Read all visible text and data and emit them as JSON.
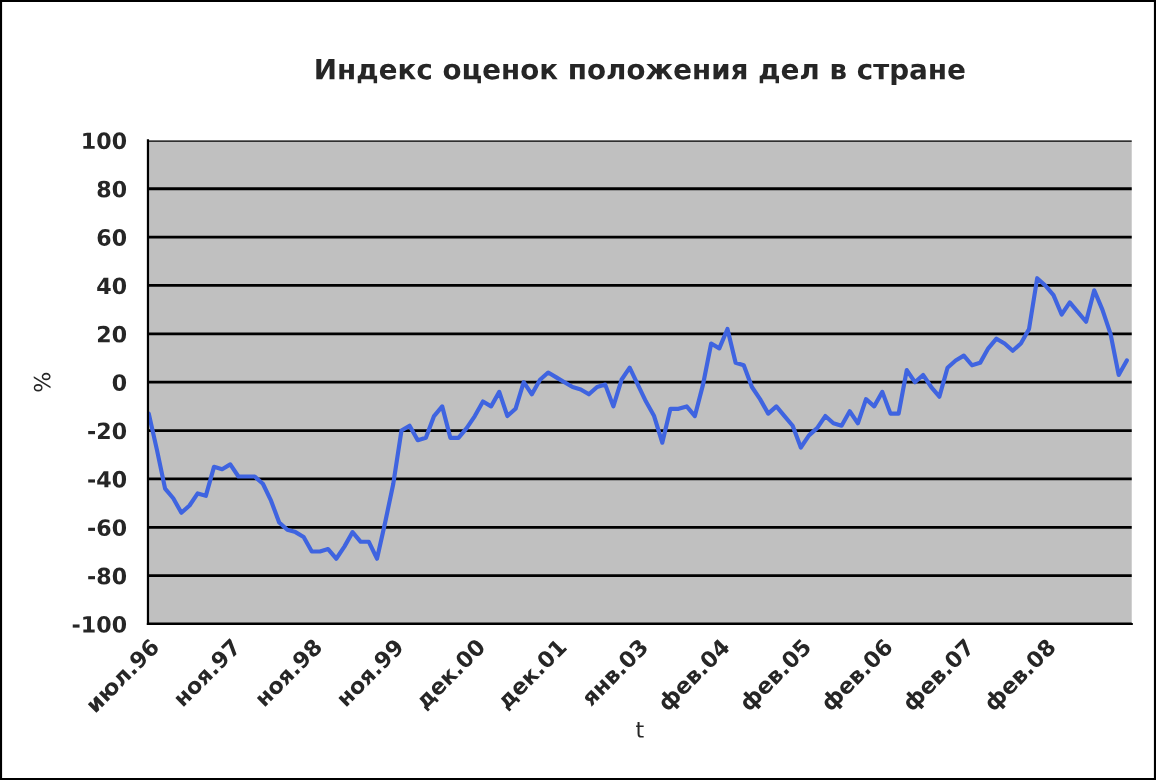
{
  "chart_data": {
    "type": "line",
    "title": "Индекс оценок положения дел в стране",
    "xlabel": "t",
    "ylabel": "%",
    "categories": [
      "июл.96",
      null,
      null,
      null,
      null,
      null,
      null,
      null,
      null,
      null,
      "ноя.97",
      null,
      null,
      null,
      null,
      null,
      null,
      null,
      null,
      null,
      "ноя.98",
      null,
      null,
      null,
      null,
      null,
      null,
      null,
      null,
      null,
      "ноя.99",
      null,
      null,
      null,
      null,
      null,
      null,
      null,
      null,
      null,
      "дек.00",
      null,
      null,
      null,
      null,
      null,
      null,
      null,
      null,
      null,
      "дек.01",
      null,
      null,
      null,
      null,
      null,
      null,
      null,
      null,
      null,
      "янв.03",
      null,
      null,
      null,
      null,
      null,
      null,
      null,
      null,
      null,
      "фев.04",
      null,
      null,
      null,
      null,
      null,
      null,
      null,
      null,
      null,
      "фев.05",
      null,
      null,
      null,
      null,
      null,
      null,
      null,
      null,
      null,
      "фев.06",
      null,
      null,
      null,
      null,
      null,
      null,
      null,
      null,
      null,
      "фев.07",
      null,
      null,
      null,
      null,
      null,
      null,
      null,
      null,
      null,
      "фев.08",
      null,
      null,
      null,
      null,
      null,
      null,
      null,
      null,
      null,
      null
    ],
    "series": [
      {
        "color": "#3f64e0",
        "values": [
          -13,
          -28,
          -44,
          -48,
          -54,
          -51,
          -46,
          -47,
          -35,
          -36,
          -34,
          -39,
          -39,
          -39,
          -42,
          -49,
          -58,
          -61,
          -62,
          -64,
          -70,
          -70,
          -69,
          -73,
          -68,
          -62,
          -66,
          -66,
          -73,
          -58,
          -42,
          -20,
          -18,
          -24,
          -23,
          -14,
          -10,
          -23,
          -23,
          -19,
          -14,
          -8,
          -10,
          -4,
          -14,
          -11,
          0,
          -5,
          1,
          4,
          2,
          0,
          -2,
          -3,
          -5,
          -2,
          -1,
          -10,
          1,
          6,
          -1,
          -8,
          -14,
          -25,
          -11,
          -11,
          -10,
          -14,
          -1,
          16,
          14,
          22,
          8,
          7,
          -2,
          -7,
          -13,
          -10,
          -14,
          -18,
          -27,
          -22,
          -19,
          -14,
          -17,
          -18,
          -12,
          -17,
          -7,
          -10,
          -4,
          -13,
          -13,
          5,
          0,
          3,
          -2,
          -6,
          6,
          9,
          11,
          7,
          8,
          14,
          18,
          16,
          13,
          16,
          22,
          43,
          40,
          36,
          28,
          33,
          29,
          25,
          38,
          30,
          20,
          3,
          9
        ]
      }
    ],
    "ylim": [
      -100,
      100
    ],
    "yticks": [
      -100,
      -80,
      -60,
      -40,
      -20,
      0,
      20,
      40,
      60,
      80,
      100
    ],
    "grid": "y",
    "legend": false,
    "marker": "none",
    "line_style": "solid"
  }
}
